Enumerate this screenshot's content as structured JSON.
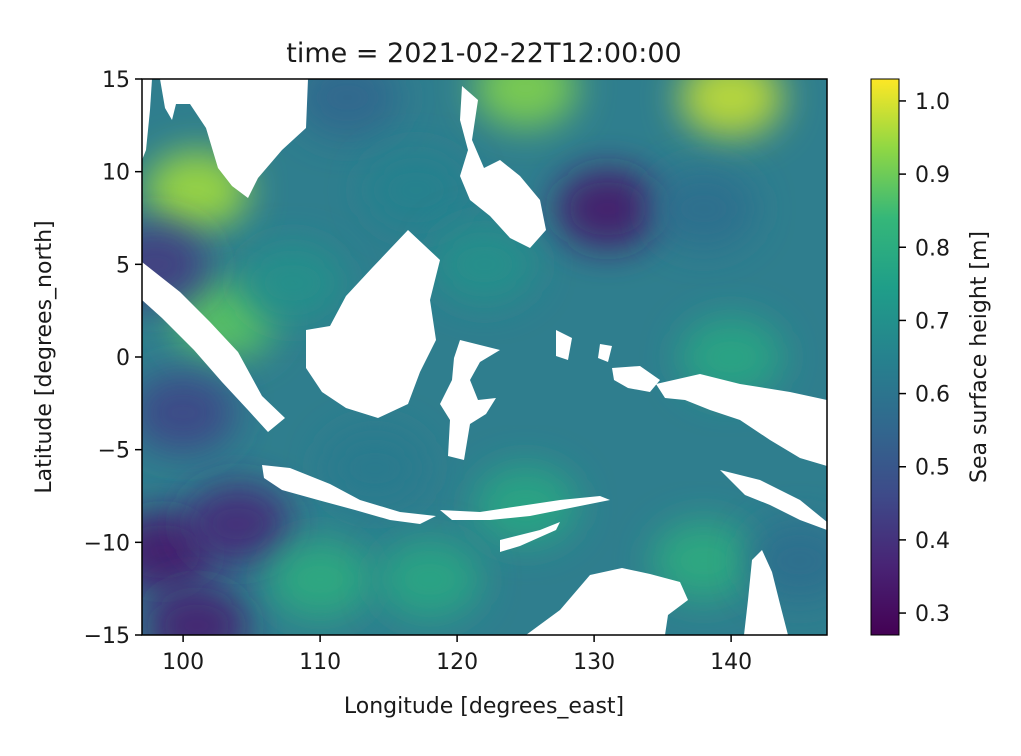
{
  "chart_data": {
    "type": "heatmap",
    "title": "time = 2021-02-22T12:00:00",
    "xlabel": "Longitude [degrees_east]",
    "ylabel": "Latitude [degrees_north]",
    "xlim": [
      97,
      147
    ],
    "ylim": [
      -15,
      15
    ],
    "x_ticks": [
      100,
      110,
      120,
      130,
      140
    ],
    "x_tick_labels": [
      "100",
      "110",
      "120",
      "130",
      "140"
    ],
    "y_ticks": [
      15,
      10,
      5,
      0,
      -5,
      -10,
      -15
    ],
    "y_tick_labels": [
      "15",
      "10",
      "5",
      "0",
      "−5",
      "−10",
      "−15"
    ],
    "colormap": "viridis",
    "colorbar": {
      "label": "Sea surface height [m]",
      "range": [
        0.27,
        1.03
      ],
      "ticks": [
        1.0,
        0.9,
        0.8,
        0.7,
        0.6,
        0.5,
        0.4,
        0.3
      ],
      "tick_labels": [
        "1.0",
        "0.9",
        "0.8",
        "0.7",
        "0.6",
        "0.5",
        "0.4",
        "0.3"
      ]
    },
    "land_color": "#ffffff",
    "field_features": [
      {
        "lon": 131,
        "lat": 8,
        "value": 0.33
      },
      {
        "lon": 98.5,
        "lat": -10.5,
        "value": 0.34
      },
      {
        "lon": 104,
        "lat": -9,
        "value": 0.38
      },
      {
        "lon": 101,
        "lat": -14.5,
        "value": 0.35
      },
      {
        "lon": 112,
        "lat": 14,
        "value": 0.55
      },
      {
        "lon": 125,
        "lat": 14.5,
        "value": 0.92
      },
      {
        "lon": 140,
        "lat": 14,
        "value": 0.98
      },
      {
        "lon": 101,
        "lat": 9,
        "value": 0.95
      },
      {
        "lon": 103,
        "lat": 2,
        "value": 0.88
      },
      {
        "lon": 108,
        "lat": 4,
        "value": 0.7
      },
      {
        "lon": 117,
        "lat": 9,
        "value": 0.65
      },
      {
        "lon": 122,
        "lat": 5,
        "value": 0.7
      },
      {
        "lon": 138,
        "lat": 8,
        "value": 0.58
      },
      {
        "lon": 140,
        "lat": 0,
        "value": 0.78
      },
      {
        "lon": 114,
        "lat": -6,
        "value": 0.62
      },
      {
        "lon": 125,
        "lat": -8,
        "value": 0.78
      },
      {
        "lon": 110,
        "lat": -12,
        "value": 0.8
      },
      {
        "lon": 118,
        "lat": -12,
        "value": 0.78
      },
      {
        "lon": 138,
        "lat": -11,
        "value": 0.8
      },
      {
        "lon": 145,
        "lat": -11,
        "value": 0.58
      },
      {
        "lon": 98,
        "lat": 5,
        "value": 0.42
      },
      {
        "lon": 100,
        "lat": -3,
        "value": 0.45
      }
    ]
  }
}
